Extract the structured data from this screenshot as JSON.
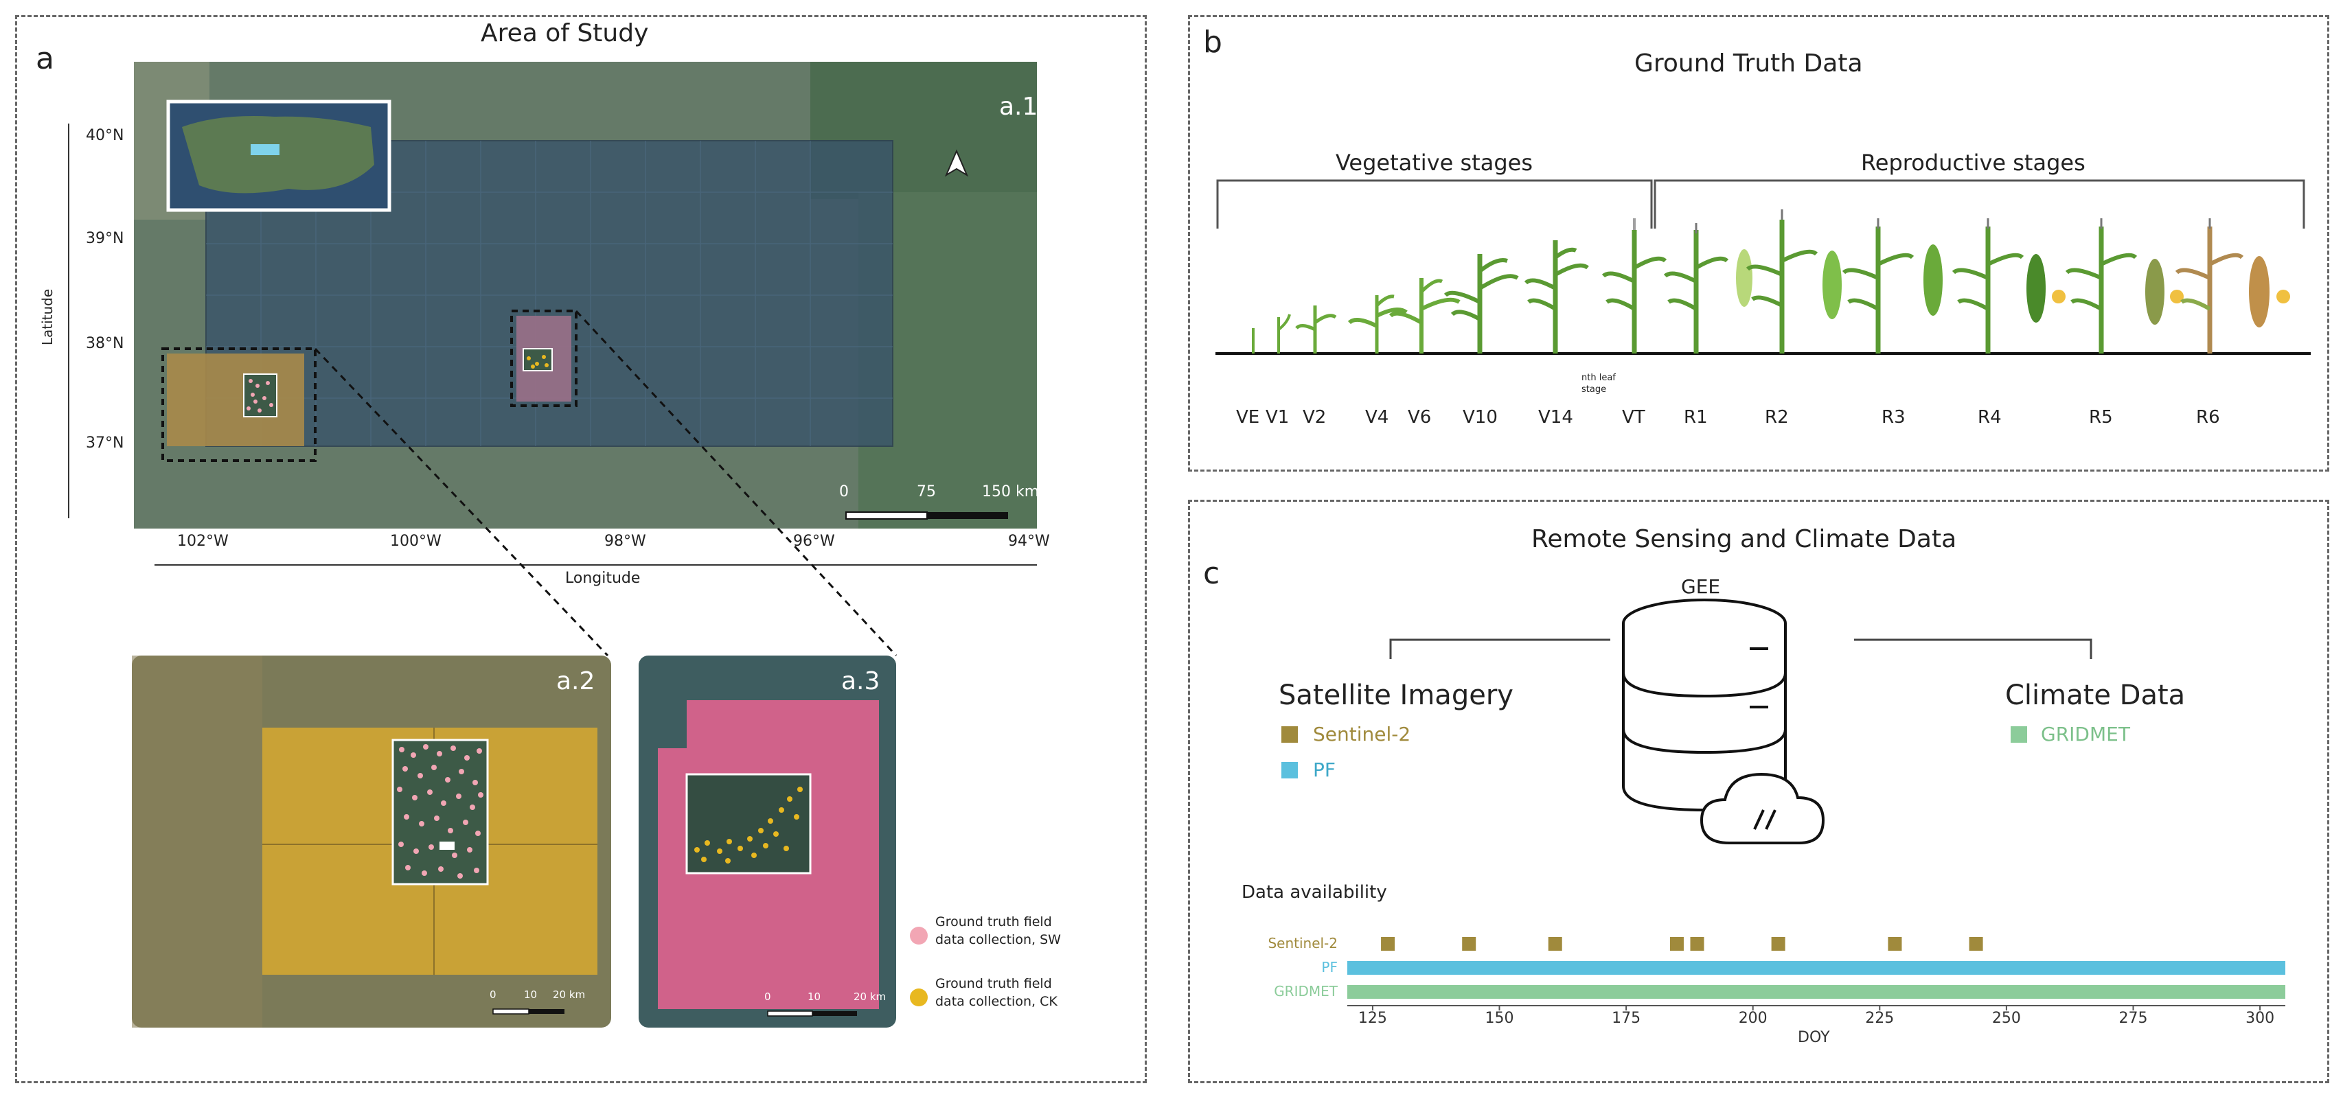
{
  "panel_a": {
    "letter": "a",
    "title": "Area of Study",
    "map_main": {
      "label": "a.1",
      "lat_labels": [
        "40°N",
        "39°N",
        "38°N",
        "37°N"
      ],
      "lon_labels": [
        "102°W",
        "100°W",
        "98°W",
        "96°W",
        "94°W"
      ],
      "lat_axis": "Latitude",
      "lon_axis": "Longitude",
      "scale_ticks": [
        "0",
        "75",
        "150 km"
      ]
    },
    "inset_sw": {
      "label": "a.2",
      "scale_ticks": [
        "0",
        "10",
        "20 km"
      ]
    },
    "inset_ck": {
      "label": "a.3",
      "scale_ticks": [
        "0",
        "10",
        "20 km"
      ]
    },
    "legend": [
      {
        "line1": "Ground truth field",
        "line2": "data collection, SW",
        "color": "#f2a6b4"
      },
      {
        "line1": "Ground truth field",
        "line2": "data collection, CK",
        "color": "#e8b820"
      }
    ]
  },
  "panel_b": {
    "letter": "b",
    "title": "Ground Truth Data",
    "veg_label": "Vegetative stages",
    "rep_label": "Reproductive stages",
    "note_line1": "nth leaf",
    "note_line2": "stage",
    "stages": [
      "VE",
      "V1",
      "V2",
      "V4",
      "V6",
      "V10",
      "V14",
      "VT",
      "R1",
      "R2",
      "R3",
      "R4",
      "R5",
      "R6"
    ]
  },
  "panel_c": {
    "letter": "c",
    "title": "Remote Sensing and Climate  Data",
    "gee_label": "GEE",
    "satellite_heading": "Satellite Imagery",
    "climate_heading": "Climate Data",
    "sat_items": [
      {
        "name": "Sentinel-2",
        "color": "#a08a3c"
      },
      {
        "name": "PF",
        "color": "#5bc0de"
      }
    ],
    "climate_items": [
      {
        "name": "GRIDMET",
        "color": "#8ccc9a"
      }
    ],
    "availability_title": "Data availability"
  },
  "chart_data": {
    "type": "timeline",
    "title": "Data availability",
    "xlabel": "DOY",
    "xlim": [
      120,
      305
    ],
    "xticks": [
      125,
      150,
      175,
      200,
      225,
      250,
      275,
      300
    ],
    "series": [
      {
        "name": "Sentinel-2",
        "kind": "points",
        "values": [
          128,
          144,
          161,
          185,
          189,
          205,
          228,
          244
        ],
        "color": "#a08a3c"
      },
      {
        "name": "PF",
        "kind": "range",
        "values": [
          120,
          305
        ],
        "color": "#5bc0de"
      },
      {
        "name": "GRIDMET",
        "kind": "range",
        "values": [
          120,
          305
        ],
        "color": "#8ccc9a"
      }
    ]
  }
}
